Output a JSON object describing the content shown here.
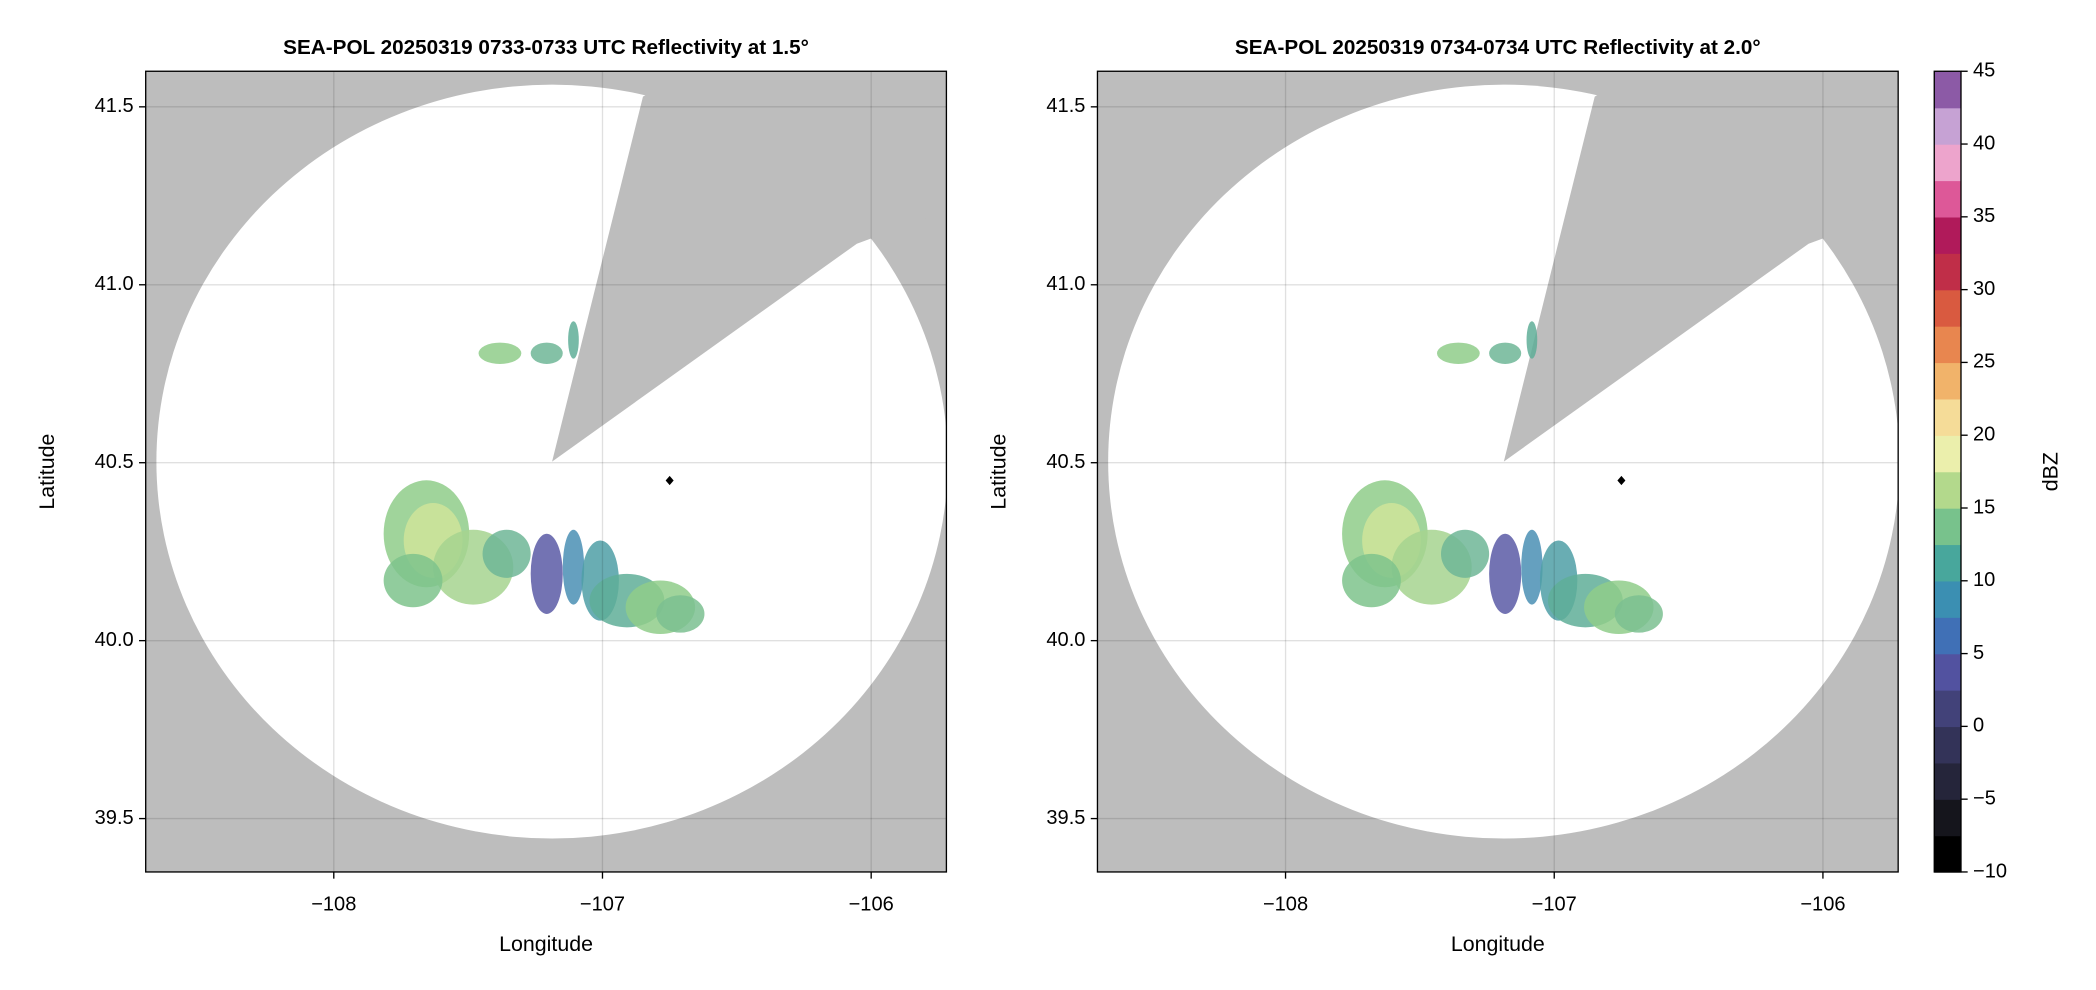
{
  "chart_data": [
    {
      "type": "map",
      "title": "SEA-POL 20250319 0733-0733 UTC Reflectivity at 1.5°",
      "xlabel": "Longitude",
      "ylabel": "Latitude",
      "xlim": [
        -108.7,
        -105.72
      ],
      "ylim": [
        39.35,
        41.6
      ],
      "xticks": [
        {
          "value": -108,
          "label": "−108"
        },
        {
          "value": -107,
          "label": "−107"
        },
        {
          "value": -106,
          "label": "−106"
        }
      ],
      "yticks": [
        39.5,
        {
          "value": 40,
          "label": "40.0"
        },
        40.5,
        {
          "value": 41,
          "label": "41.0"
        },
        41.5
      ],
      "grid": true,
      "x": [
        -106.75
      ],
      "y": [
        40.45
      ],
      "color": "#000000"
    },
    {
      "type": "map",
      "title": "SEA-POL 20250319 0734-0734 UTC Reflectivity at 2.0°",
      "xlabel": "Longitude",
      "ylabel": "Latitude",
      "xlim": [
        -108.7,
        -105.72
      ],
      "ylim": [
        39.35,
        41.6
      ],
      "xticks": [
        {
          "value": -108,
          "label": "−108"
        },
        {
          "value": -107,
          "label": "−107"
        },
        {
          "value": -106,
          "label": "−106"
        }
      ],
      "yticks": [
        39.5,
        {
          "value": 40,
          "label": "40.0"
        },
        40.5,
        {
          "value": 41,
          "label": "41.0"
        },
        41.5
      ],
      "grid": true,
      "x": [
        -106.75
      ],
      "y": [
        40.45
      ],
      "color": "#000000"
    },
    {
      "type": "colorbar",
      "label": "dBZ",
      "ylim": [
        -10,
        45
      ],
      "yticks": [
        {
          "value": -10,
          "label": "−10"
        },
        {
          "value": -5,
          "label": "−5"
        },
        0,
        5,
        10,
        15,
        20,
        25,
        30,
        35,
        40,
        45
      ],
      "colors": [
        "#000000",
        "#15151c",
        "#25253a",
        "#333358",
        "#424279",
        "#5252a0",
        "#4070b6",
        "#3b8fb2",
        "#48a79c",
        "#78c28c",
        "#b3d98c",
        "#ebefac",
        "#f5dc98",
        "#f1b36a",
        "#e8864f",
        "#d95a40",
        "#c02e48",
        "#b01a5a",
        "#dd5898",
        "#eda4cc",
        "#c6a2d4",
        "#8c5aa6"
      ]
    }
  ]
}
